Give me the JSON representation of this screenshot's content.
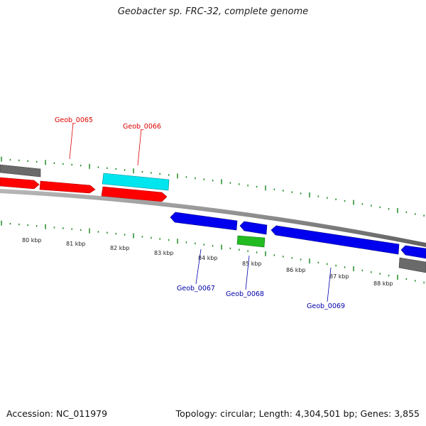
{
  "title": "Geobacter sp. FRC-32, complete genome",
  "footer": {
    "accession": "Accession: NC_011979",
    "summary": "Topology: circular; Length: 4,304,501 bp; Genes: 3,855"
  },
  "colors": {
    "forward_gene": "#ff0000",
    "reverse_gene": "#0000ee",
    "rna_cyan": "#00e5ee",
    "rna_green": "#22bb22",
    "other": "#666666",
    "backbone": "#888888",
    "tick": "#228B22",
    "label_forward": "#dd0000",
    "label_reverse": "#0000aa"
  },
  "scale_labels": [
    "80 kbp",
    "81 kbp",
    "82 kbp",
    "83 kbp",
    "84 kbp",
    "85 kbp",
    "86 kbp",
    "87 kbp",
    "88 kbp"
  ],
  "gene_labels": {
    "forward": [
      "Geob_0065",
      "Geob_0066"
    ],
    "reverse": [
      "Geob_0067",
      "Geob_0068",
      "Geob_0069"
    ]
  }
}
